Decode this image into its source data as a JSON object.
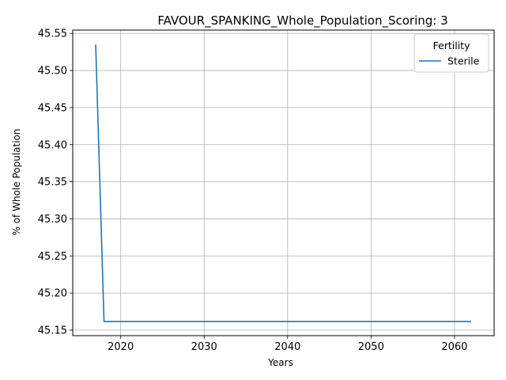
{
  "chart_data": {
    "type": "line",
    "title": "FAVOUR_SPANKING_Whole_Population_Scoring: 3",
    "xlabel": "Years",
    "ylabel": "% of Whole Population",
    "xlim": [
      2014.25,
      2064.75
    ],
    "ylim": [
      45.1425,
      45.5545
    ],
    "xticks": [
      2020,
      2030,
      2040,
      2050,
      2060
    ],
    "yticks": [
      45.15,
      45.2,
      45.25,
      45.3,
      45.35,
      45.4,
      45.45,
      45.5,
      45.55
    ],
    "grid": true,
    "legend": {
      "title": "Fertility",
      "position": "top-right"
    },
    "series": [
      {
        "name": "Sterile",
        "color": "#1f77b4",
        "x": [
          2017,
          2018,
          2019,
          2020,
          2021,
          2022,
          2023,
          2024,
          2025,
          2026,
          2027,
          2028,
          2029,
          2030,
          2031,
          2032,
          2033,
          2034,
          2035,
          2036,
          2037,
          2038,
          2039,
          2040,
          2041,
          2042,
          2043,
          2044,
          2045,
          2046,
          2047,
          2048,
          2049,
          2050,
          2051,
          2052,
          2053,
          2054,
          2055,
          2056,
          2057,
          2058,
          2059,
          2060,
          2061,
          2062
        ],
        "y": [
          45.535,
          45.1615,
          45.1615,
          45.1615,
          45.1615,
          45.1615,
          45.1615,
          45.1615,
          45.1615,
          45.1615,
          45.1615,
          45.1615,
          45.1615,
          45.1615,
          45.1615,
          45.1615,
          45.1615,
          45.1615,
          45.1615,
          45.1615,
          45.1615,
          45.1615,
          45.1615,
          45.1615,
          45.1615,
          45.1615,
          45.1615,
          45.1615,
          45.1615,
          45.1615,
          45.1615,
          45.1615,
          45.1615,
          45.1615,
          45.1615,
          45.1615,
          45.1615,
          45.1615,
          45.1615,
          45.1615,
          45.1615,
          45.1615,
          45.1615,
          45.1615,
          45.1615,
          45.1615
        ]
      }
    ]
  }
}
